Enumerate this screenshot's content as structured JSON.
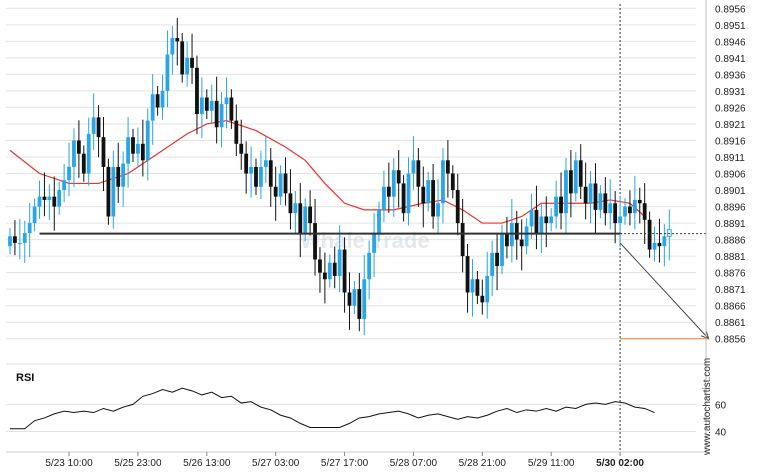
{
  "watermark_text": "Whale Trade",
  "brand_text": "www.autochartist.com",
  "rsi_title": "RSI",
  "colors": {
    "bull": "#2aa5e8",
    "bear": "#111111",
    "ma": "#e8322c",
    "support": "#333333",
    "target": "#f07c2c",
    "arrow": "#444444",
    "grid": "#e3e3e3"
  },
  "chart_data": {
    "type": "candlestick",
    "title": "",
    "y_ticks": [
      "0.8956",
      "0.8951",
      "0.8946",
      "0.8941",
      "0.8936",
      "0.8931",
      "0.8926",
      "0.8921",
      "0.8916",
      "0.8911",
      "0.8906",
      "0.8901",
      "0.8896",
      "0.8891",
      "0.8886",
      "0.8881",
      "0.8876",
      "0.8871",
      "0.8866",
      "0.8861",
      "0.8856"
    ],
    "ylim": [
      0.88535,
      0.8957
    ],
    "x_ticks": [
      "5/23 10:00",
      "5/25 23:00",
      "5/26 13:00",
      "5/27 03:00",
      "5/27 17:00",
      "5/28 07:00",
      "5/28 21:00",
      "5/29 11:00",
      "5/30 02:00"
    ],
    "x_tick_index": [
      12,
      26,
      40,
      54,
      68,
      82,
      96,
      110,
      124
    ],
    "current_time_index": 124,
    "candles_anchor_closes": [
      0.8887,
      0.8885,
      0.8885,
      0.8888,
      0.8891,
      0.8896,
      0.8899,
      0.8898,
      0.8899,
      0.8896,
      0.8901,
      0.8904,
      0.8908,
      0.8916,
      0.8912,
      0.8906,
      0.8918,
      0.8923,
      0.8917,
      0.8908,
      0.8893,
      0.8908,
      0.8902,
      0.8909,
      0.8917,
      0.8912,
      0.8915,
      0.891,
      0.8922,
      0.893,
      0.8926,
      0.8931,
      0.8942,
      0.8947,
      0.8946,
      0.8936,
      0.8941,
      0.8938,
      0.8924,
      0.8929,
      0.8925,
      0.8928,
      0.892,
      0.8927,
      0.8929,
      0.8922,
      0.8915,
      0.8912,
      0.8906,
      0.8908,
      0.8902,
      0.8908,
      0.891,
      0.8902,
      0.8899,
      0.8906,
      0.89,
      0.8894,
      0.8897,
      0.8888,
      0.8896,
      0.8891,
      0.888,
      0.8876,
      0.8874,
      0.8879,
      0.8875,
      0.8883,
      0.887,
      0.8866,
      0.8871,
      0.8862,
      0.8874,
      0.8882,
      0.8888,
      0.8895,
      0.8902,
      0.8899,
      0.8907,
      0.8903,
      0.8894,
      0.8906,
      0.891,
      0.8902,
      0.8897,
      0.8904,
      0.8893,
      0.8897,
      0.891,
      0.8906,
      0.8901,
      0.8891,
      0.8881,
      0.887,
      0.8874,
      0.8869,
      0.8867,
      0.8875,
      0.8882,
      0.8878,
      0.8888,
      0.8884,
      0.8891,
      0.8886,
      0.8884,
      0.889,
      0.8895,
      0.8888,
      0.8893,
      0.8891,
      0.8893,
      0.8899,
      0.8894,
      0.8907,
      0.89,
      0.891,
      0.8902,
      0.8897,
      0.8903,
      0.8895,
      0.89,
      0.8894,
      0.8897,
      0.8891,
      0.8893,
      0.8896,
      0.8894,
      0.8898,
      0.8897,
      0.8892,
      0.8883,
      0.8885,
      0.8884,
      0.8887,
      0.8889
    ],
    "moving_average": {
      "color_key": "ma",
      "points": [
        [
          0,
          0.8913
        ],
        [
          6,
          0.8906
        ],
        [
          12,
          0.8903
        ],
        [
          18,
          0.8903
        ],
        [
          24,
          0.8906
        ],
        [
          30,
          0.8912
        ],
        [
          36,
          0.8918
        ],
        [
          40,
          0.8921
        ],
        [
          44,
          0.8922
        ],
        [
          50,
          0.8919
        ],
        [
          56,
          0.8914
        ],
        [
          60,
          0.891
        ],
        [
          64,
          0.8903
        ],
        [
          68,
          0.8897
        ],
        [
          72,
          0.8895
        ],
        [
          78,
          0.8895
        ],
        [
          84,
          0.8897
        ],
        [
          88,
          0.8898
        ],
        [
          92,
          0.8895
        ],
        [
          96,
          0.8891
        ],
        [
          100,
          0.8891
        ],
        [
          104,
          0.8893
        ],
        [
          108,
          0.8897
        ],
        [
          112,
          0.8897
        ],
        [
          118,
          0.8897
        ],
        [
          122,
          0.8898
        ],
        [
          126,
          0.8897
        ],
        [
          129,
          0.8893
        ]
      ]
    },
    "support_level": {
      "value": 0.88878,
      "x_start": 6,
      "x_end": 124,
      "extends_dashed_to_axis": true
    },
    "forecast": {
      "from": [
        124,
        0.8885
      ],
      "to": [
        142,
        0.8856
      ]
    },
    "target_level": {
      "value": 0.8856,
      "x_start": 124,
      "x_end": 142
    },
    "rsi": {
      "ticks": [
        60,
        40
      ],
      "ylim": [
        33,
        78
      ],
      "points": [
        [
          0,
          42
        ],
        [
          3,
          42
        ],
        [
          5,
          48
        ],
        [
          7,
          50
        ],
        [
          9,
          53
        ],
        [
          11,
          55
        ],
        [
          13,
          54
        ],
        [
          15,
          55
        ],
        [
          17,
          54
        ],
        [
          19,
          57
        ],
        [
          21,
          55
        ],
        [
          23,
          58
        ],
        [
          25,
          60
        ],
        [
          27,
          66
        ],
        [
          29,
          68
        ],
        [
          31,
          71
        ],
        [
          33,
          69
        ],
        [
          35,
          72
        ],
        [
          37,
          70
        ],
        [
          39,
          67
        ],
        [
          41,
          69
        ],
        [
          43,
          65
        ],
        [
          45,
          66
        ],
        [
          47,
          61
        ],
        [
          49,
          62
        ],
        [
          51,
          58
        ],
        [
          53,
          56
        ],
        [
          55,
          52
        ],
        [
          57,
          50
        ],
        [
          59,
          46
        ],
        [
          61,
          43
        ],
        [
          63,
          43
        ],
        [
          65,
          43
        ],
        [
          67,
          43
        ],
        [
          69,
          46
        ],
        [
          71,
          50
        ],
        [
          73,
          51
        ],
        [
          75,
          53
        ],
        [
          77,
          54
        ],
        [
          79,
          55
        ],
        [
          81,
          53
        ],
        [
          83,
          50
        ],
        [
          85,
          52
        ],
        [
          87,
          53
        ],
        [
          89,
          51
        ],
        [
          91,
          49
        ],
        [
          93,
          51
        ],
        [
          95,
          50
        ],
        [
          97,
          52
        ],
        [
          99,
          55
        ],
        [
          101,
          57
        ],
        [
          103,
          54
        ],
        [
          105,
          56
        ],
        [
          107,
          55
        ],
        [
          109,
          57
        ],
        [
          111,
          55
        ],
        [
          113,
          58
        ],
        [
          115,
          57
        ],
        [
          117,
          60
        ],
        [
          119,
          61
        ],
        [
          121,
          60
        ],
        [
          123,
          62
        ],
        [
          125,
          61
        ],
        [
          127,
          58
        ],
        [
          129,
          57
        ],
        [
          131,
          54
        ]
      ]
    }
  }
}
